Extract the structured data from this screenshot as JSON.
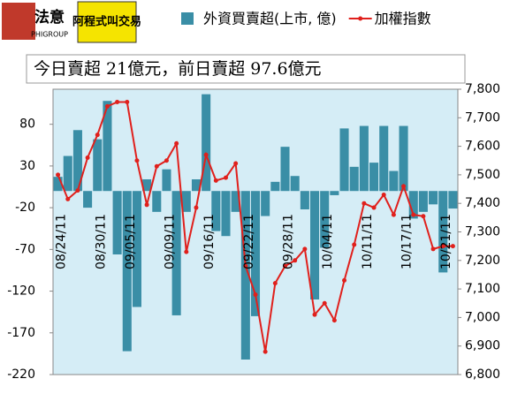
{
  "logo": {
    "left": "法意",
    "left_sub": "PHIGROUP",
    "right": "阿程式叫交易"
  },
  "chart_data": {
    "type": "bar-line",
    "title": "今日賣超 21億元，前日賣超 97.6億元",
    "categories": [
      "08/24/11",
      null,
      null,
      null,
      "08/30/11",
      null,
      null,
      "09/05/11",
      null,
      null,
      null,
      "09/09/11",
      null,
      null,
      null,
      "09/16/11",
      null,
      null,
      null,
      "09/22/11",
      null,
      null,
      null,
      "09/28/11",
      null,
      null,
      null,
      "10/04/11",
      null,
      null,
      null,
      "10/11/11",
      null,
      null,
      null,
      "10/17/11",
      null,
      null,
      null,
      "10/21/11",
      null
    ],
    "series": [
      {
        "name": "外資買賣超(上市, 億)",
        "type": "bar",
        "color": "#3a8ea6",
        "values": [
          17,
          42,
          73,
          -20,
          62,
          108,
          -76,
          -192,
          -139,
          14,
          -25,
          26,
          -149,
          -25,
          14,
          116,
          -48,
          -54,
          -25,
          -202,
          -150,
          -30,
          11,
          53,
          18,
          -22,
          -130,
          -68,
          -5,
          75,
          29,
          78,
          34,
          78,
          24,
          78,
          -33,
          -25,
          -16,
          -97.6,
          -21
        ]
      },
      {
        "name": "加權指數",
        "type": "line",
        "color": "#e0201c",
        "axis": "y2",
        "values": [
          7500,
          7415,
          7445,
          7560,
          7640,
          7740,
          7755,
          7755,
          7550,
          7395,
          7530,
          7550,
          7610,
          7230,
          7385,
          7570,
          7480,
          7490,
          7540,
          7180,
          7080,
          6880,
          7120,
          7180,
          7200,
          7240,
          7010,
          7050,
          6990,
          7130,
          7255,
          7400,
          7385,
          7430,
          7360,
          7460,
          7360,
          7355,
          7240,
          7250,
          7250
        ]
      }
    ],
    "ylim": [
      -220,
      122
    ],
    "yticks": [
      -220,
      -170,
      -120,
      -70,
      -20,
      30,
      80
    ],
    "y2lim": [
      6800,
      7800
    ],
    "y2ticks": [
      {
        "value": 6800,
        "label": "6,800"
      },
      {
        "value": 6900,
        "label": "6,900"
      },
      {
        "value": 7000,
        "label": "7,000"
      },
      {
        "value": 7100,
        "label": "7,100"
      },
      {
        "value": 7200,
        "label": "7,200"
      },
      {
        "value": 7300,
        "label": "7,300"
      },
      {
        "value": 7400,
        "label": "7,400"
      },
      {
        "value": 7500,
        "label": "7,500"
      },
      {
        "value": 7600,
        "label": "7,600"
      },
      {
        "value": 7700,
        "label": "7,700"
      },
      {
        "value": 7800,
        "label": "7,800"
      }
    ]
  }
}
